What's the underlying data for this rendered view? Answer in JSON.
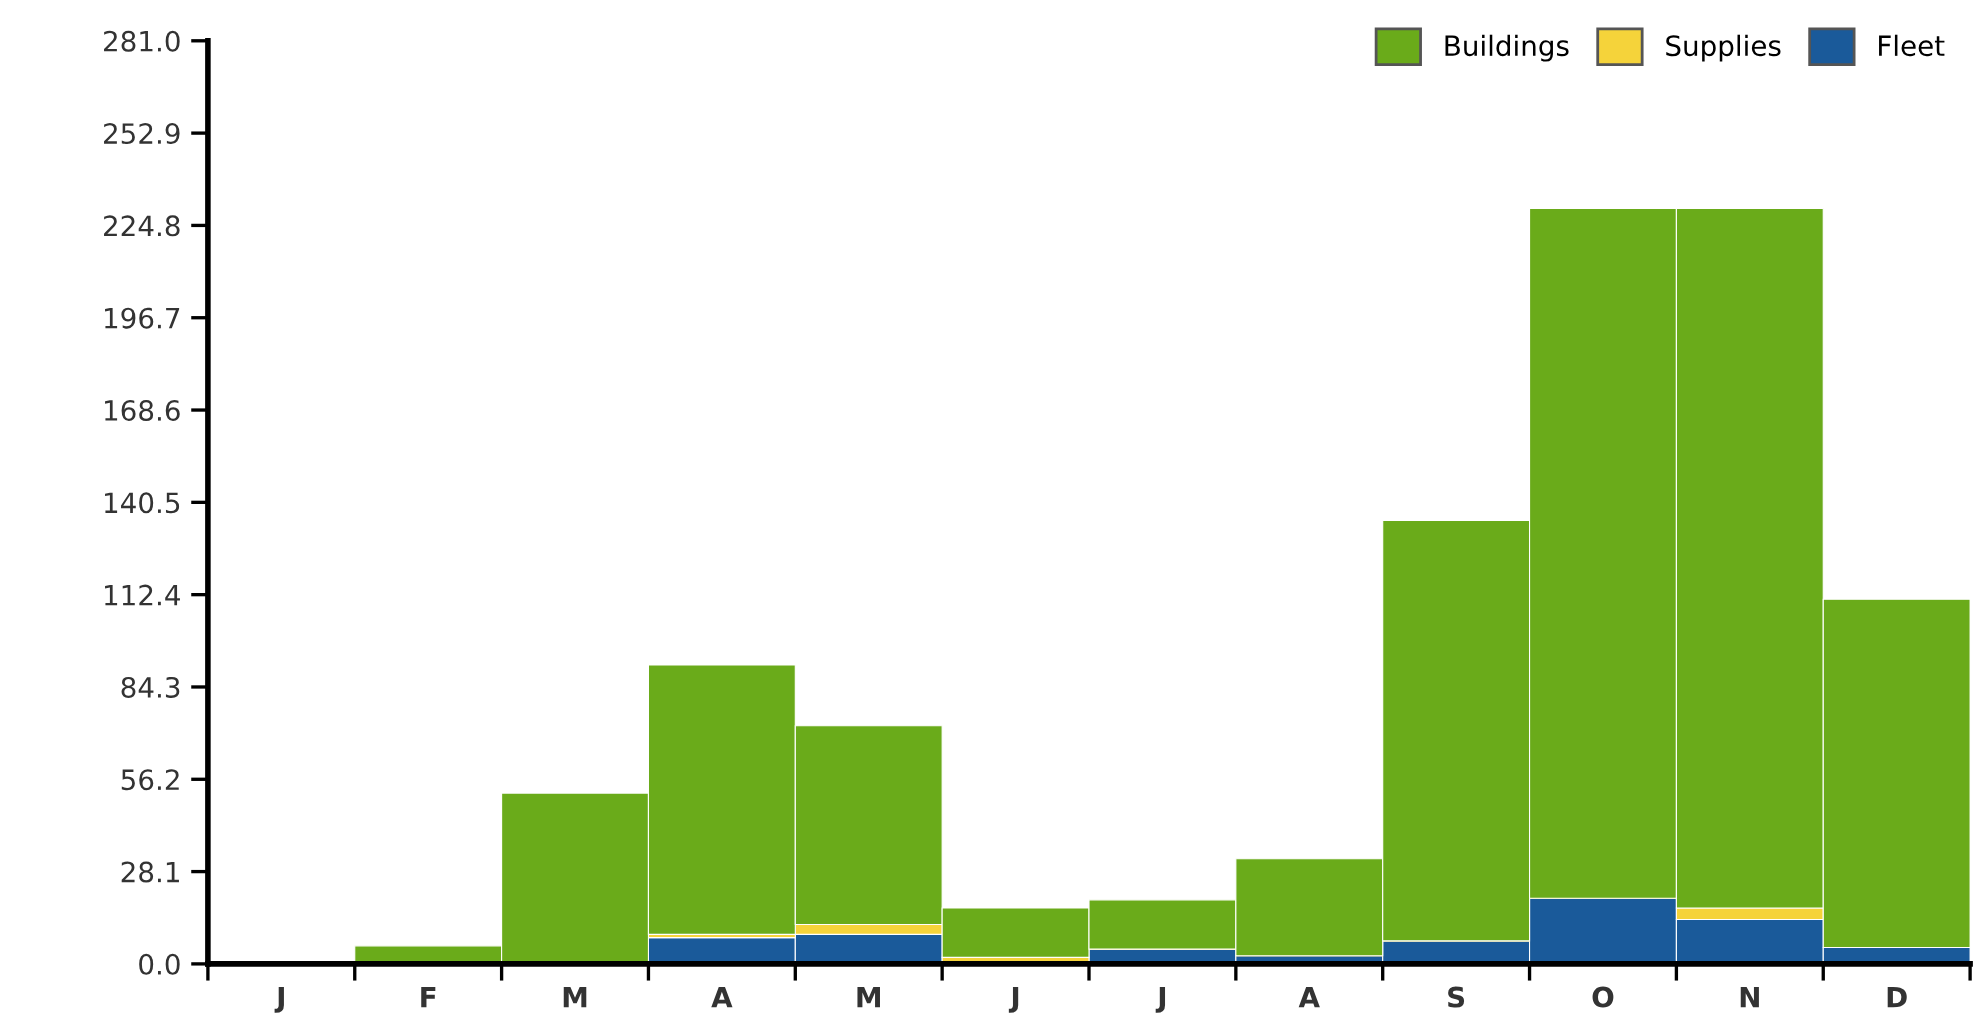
{
  "chart_data": {
    "type": "bar",
    "stacked": true,
    "categories": [
      "J",
      "F",
      "M",
      "A",
      "M",
      "J",
      "J",
      "A",
      "S",
      "O",
      "N",
      "D"
    ],
    "series": [
      {
        "name": "Fleet",
        "color": "#1a5a9a",
        "values": [
          0,
          0,
          0,
          8,
          9,
          0,
          4.5,
          2.5,
          7,
          20,
          13.5,
          5
        ]
      },
      {
        "name": "Supplies",
        "color": "#f5d33a",
        "values": [
          0,
          0,
          0,
          1,
          3,
          2,
          0,
          0,
          0,
          0,
          3.5,
          0
        ]
      },
      {
        "name": "Buildings",
        "color": "#6aab1a",
        "values": [
          0,
          5.5,
          52,
          82,
          60.5,
          15,
          15,
          29.5,
          128,
          210,
          213,
          106
        ]
      }
    ],
    "ylim": [
      0,
      281
    ],
    "yticks": [
      {
        "value": 0,
        "label": "0.0"
      },
      28.1,
      56.2,
      84.3,
      112.4,
      140.5,
      168.6,
      196.7,
      224.8,
      252.9,
      {
        "value": 281,
        "label": "281.0"
      }
    ],
    "legend": "top right",
    "grid": false
  }
}
